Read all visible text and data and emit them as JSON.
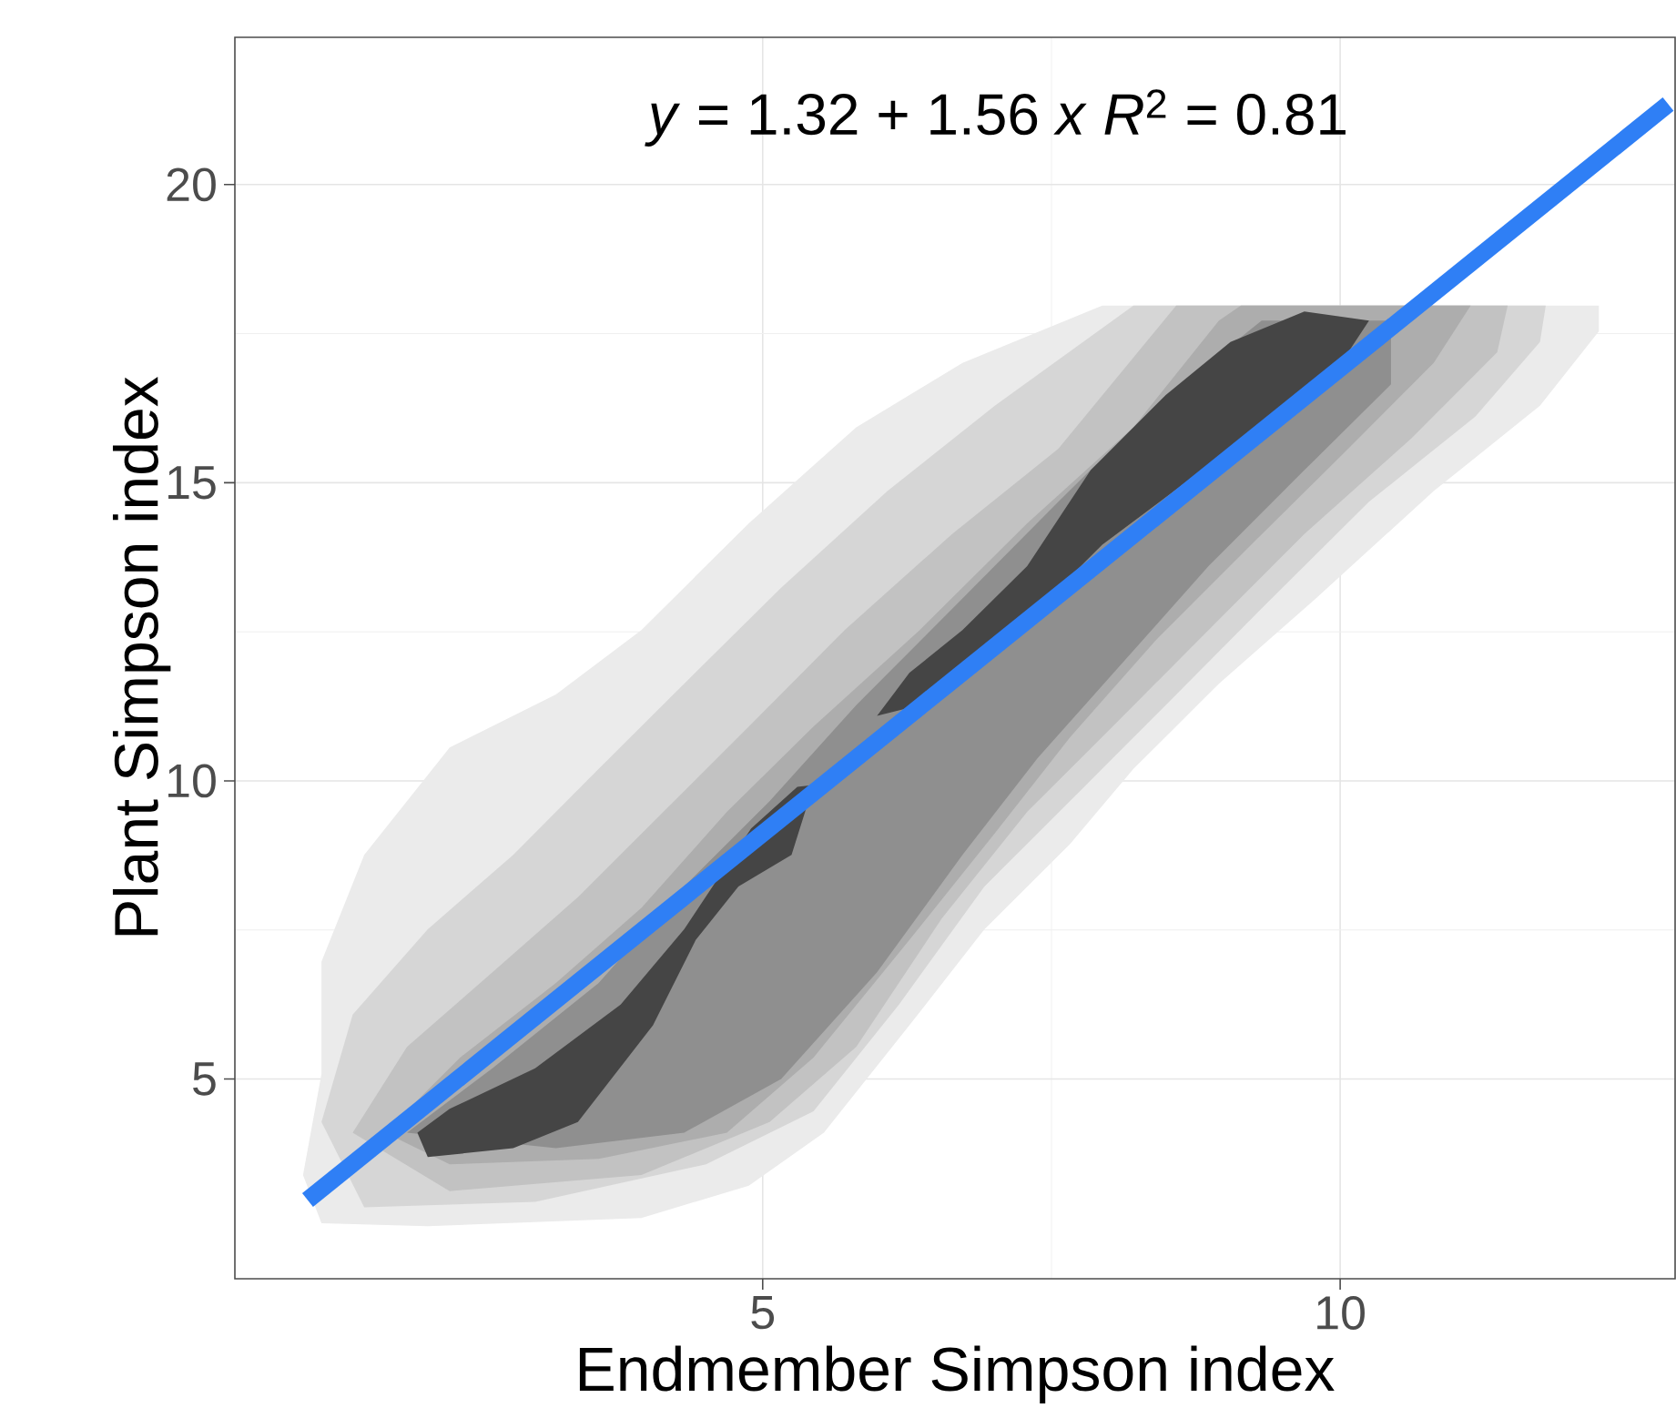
{
  "chart_data": {
    "type": "area",
    "xlabel": "Endmember Simpson index",
    "ylabel": "Plant Simpson index",
    "annotations": [
      "*y* = 1.32 + 1.56 *x*   *R*$^{2}$ = 0.81"
    ],
    "xlim": [
      0.43,
      12.9
    ],
    "ylim": [
      1.65,
      22.47
    ],
    "xticks": [
      5,
      10
    ],
    "yticks": [
      5,
      10,
      15,
      20
    ],
    "grid": true,
    "series": [
      {
        "color": "#ebebeb",
        "x": [
          1.18,
          1.18,
          1.55,
          2.29,
          3.21,
          3.95,
          4.88,
          5.81,
          6.73,
          7.94,
          12.24,
          12.24,
          11.73,
          10.81,
          9.79,
          8.95,
          8.21,
          7.66,
          6.92,
          6.27,
          5.53,
          4.88,
          3.95,
          2.1,
          1.18,
          1.02
        ],
        "values": [
          5.09,
          6.97,
          8.76,
          10.56,
          11.45,
          12.53,
          14.32,
          15.93,
          17.01,
          17.97,
          17.97,
          17.54,
          16.29,
          14.86,
          13.06,
          11.63,
          10.2,
          8.94,
          7.51,
          5.9,
          4.1,
          3.21,
          2.67,
          2.53,
          2.58,
          3.39
        ]
      },
      {
        "color": "#d6d6d6",
        "x": [
          1.18,
          1.45,
          2.1,
          2.84,
          3.58,
          4.32,
          5.16,
          6.08,
          7.01,
          8.21,
          11.78,
          11.73,
          11.17,
          10.25,
          9.32,
          8.49,
          7.66,
          6.92,
          6.18,
          5.44,
          4.51,
          3.03,
          1.55
        ],
        "values": [
          4.28,
          6.08,
          7.51,
          8.76,
          10.2,
          11.63,
          13.24,
          14.86,
          16.29,
          17.97,
          17.97,
          17.36,
          16.11,
          14.68,
          12.89,
          11.27,
          9.66,
          8.23,
          6.25,
          4.46,
          3.57,
          2.94,
          2.85
        ]
      },
      {
        "color": "#c2c2c2",
        "x": [
          1.45,
          1.92,
          2.66,
          3.4,
          4.14,
          4.88,
          5.71,
          6.64,
          7.56,
          8.58,
          11.45,
          11.36,
          10.62,
          9.69,
          8.86,
          8.03,
          7.29,
          6.55,
          5.81,
          5.06,
          3.95,
          2.29
        ],
        "values": [
          4.1,
          5.54,
          6.79,
          8.05,
          9.48,
          10.91,
          12.53,
          14.14,
          15.57,
          17.97,
          17.97,
          17.19,
          15.75,
          14.14,
          12.53,
          10.91,
          9.48,
          7.69,
          5.54,
          4.28,
          3.39,
          3.12
        ]
      },
      {
        "color": "#adadad",
        "x": [
          1.73,
          2.38,
          3.21,
          3.95,
          4.69,
          5.44,
          6.36,
          7.29,
          8.21,
          8.95,
          9.14,
          11.13,
          10.81,
          10.07,
          9.23,
          8.4,
          7.66,
          7.01,
          6.27,
          5.44,
          4.69,
          3.58,
          2.29
        ],
        "values": [
          4.1,
          5.36,
          6.61,
          7.87,
          9.48,
          10.91,
          12.53,
          14.32,
          15.93,
          17.72,
          17.97,
          17.97,
          17.01,
          15.57,
          13.96,
          12.35,
          10.73,
          9.12,
          7.33,
          5.36,
          4.1,
          3.66,
          3.57
        ]
      },
      {
        "color": "#8f8f8f",
        "x": [
          1.92,
          2.66,
          3.58,
          4.32,
          5.06,
          5.81,
          6.73,
          7.56,
          8.4,
          9.32,
          10.44,
          10.44,
          9.69,
          8.86,
          8.12,
          7.38,
          6.73,
          5.99,
          5.16,
          4.32,
          3.21
        ],
        "values": [
          4.1,
          5.18,
          6.61,
          8.23,
          9.66,
          11.27,
          13.06,
          14.68,
          16.29,
          17.72,
          17.72,
          16.65,
          15.21,
          13.6,
          11.99,
          10.38,
          8.76,
          6.79,
          5.0,
          4.1,
          3.84
        ]
      },
      {
        "color": "#454545",
        "x": [
          2.01,
          2.29,
          3.03,
          3.77,
          4.32,
          4.9,
          5.3,
          5.44,
          5.25,
          4.79,
          4.42,
          4.05,
          3.4,
          2.84,
          2.1
        ],
        "values": [
          4.1,
          4.5,
          5.18,
          6.25,
          7.51,
          9.2,
          9.9,
          9.93,
          8.76,
          8.23,
          7.33,
          5.9,
          4.28,
          3.84,
          3.69
        ]
      },
      {
        "color": "#454545",
        "x": [
          5.99,
          6.27,
          6.73,
          7.29,
          7.84,
          8.49,
          9.05,
          9.69,
          10.25,
          10.07,
          9.05,
          7.94,
          6.92,
          6.36
        ],
        "values": [
          11.09,
          11.81,
          12.53,
          13.6,
          15.21,
          16.47,
          17.36,
          17.87,
          17.72,
          17.19,
          15.57,
          13.96,
          11.99,
          11.27
        ]
      },
      {
        "type": "line",
        "color": "#2f7ff5",
        "marker": "none",
        "line_style": "solid",
        "x": [
          1.06,
          12.84
        ],
        "values": [
          2.97,
          21.35
        ]
      }
    ]
  }
}
